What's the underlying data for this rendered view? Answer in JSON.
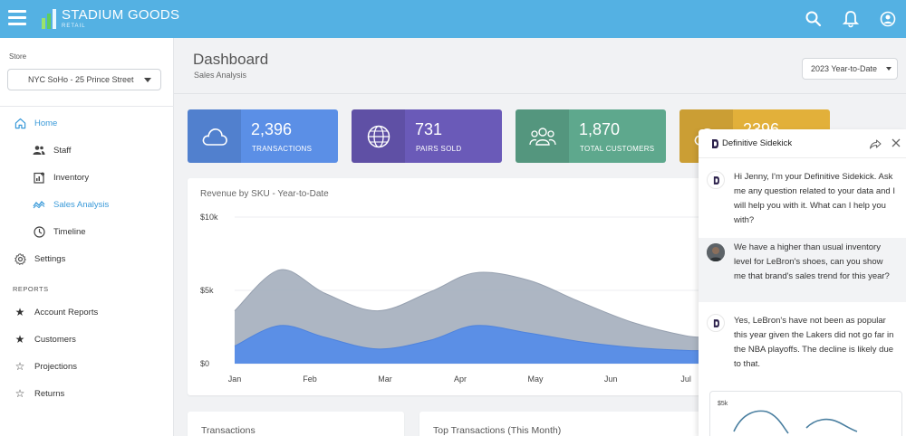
{
  "app": {
    "brand": "STADIUM GOODS",
    "brand_sub": "RETAIL"
  },
  "sidebar": {
    "store_label": "Store",
    "store_value": "NYC SoHo - 25 Prince Street",
    "items": [
      {
        "label": "Home",
        "icon": "home-icon"
      },
      {
        "label": "Staff",
        "icon": "staff-icon"
      },
      {
        "label": "Inventory",
        "icon": "inventory-icon"
      },
      {
        "label": "Sales Analysis",
        "icon": "trend-icon"
      },
      {
        "label": "Timeline",
        "icon": "clock-icon"
      },
      {
        "label": "Settings",
        "icon": "gear-icon"
      }
    ],
    "reports_label": "REPORTS",
    "reports": [
      {
        "label": "Account Reports",
        "icon": "star-filled-icon"
      },
      {
        "label": "Customers",
        "icon": "star-filled-icon"
      },
      {
        "label": "Projections",
        "icon": "star-outline-icon"
      },
      {
        "label": "Returns",
        "icon": "star-outline-icon"
      }
    ]
  },
  "header": {
    "title": "Dashboard",
    "subtitle": "Sales Analysis",
    "period": "2023 Year-to-Date"
  },
  "kpis": [
    {
      "value": "2,396",
      "label": "TRANSACTIONS",
      "color": "#5b8fe6",
      "icon": "cloud-icon"
    },
    {
      "value": "731",
      "label": "PAIRS SOLD",
      "color": "#6a5ab8",
      "icon": "globe-icon"
    },
    {
      "value": "1,870",
      "label": "TOTAL CUSTOMERS",
      "color": "#5ea88d",
      "icon": "users-icon"
    },
    {
      "value": "2396",
      "label": "",
      "color": "#e2b03a",
      "icon": "cloud-icon"
    }
  ],
  "chart_data": {
    "type": "area",
    "title": "Revenue by SKU - Year-to-Date",
    "categories": [
      "Jan",
      "Feb",
      "Mar",
      "Apr",
      "May",
      "Jun",
      "Jul"
    ],
    "y_ticks": [
      "$10k",
      "$5k",
      "$0"
    ],
    "ylim": [
      0,
      10000
    ],
    "series": [
      {
        "color": "#a9b2c0",
        "x": [
          0,
          0.6,
          1.2,
          1.9,
          2.6,
          3.2,
          3.9,
          4.6,
          5.3,
          6.0,
          6.3
        ],
        "values": [
          3600,
          6400,
          4800,
          3600,
          4900,
          6200,
          5700,
          4200,
          2800,
          1900,
          1800
        ]
      },
      {
        "color": "#5b8fe6",
        "x": [
          0,
          0.6,
          1.2,
          1.9,
          2.6,
          3.2,
          3.9,
          4.6,
          5.3,
          6.0,
          6.3
        ],
        "values": [
          1200,
          2600,
          1800,
          1000,
          1600,
          2600,
          2100,
          1500,
          1100,
          900,
          900
        ]
      }
    ]
  },
  "bottom_cards": {
    "transactions": "Transactions",
    "top_transactions": "Top Transactions (This Month)"
  },
  "sidekick": {
    "name": "Definitive Sidekick",
    "messages": [
      {
        "role": "bot",
        "text": "Hi Jenny, I'm your Definitive Sidekick. Ask me any question related to your data and I will help you with it. What can I help you with?"
      },
      {
        "role": "user",
        "text": "We have a higher than usual inventory level for LeBron's shoes, can you show me that brand's sales trend for this year?"
      },
      {
        "role": "bot",
        "text": "Yes, LeBron's have not been as popular this year given the Lakers did not go far in the NBA playoffs. The decline is likely due to that."
      }
    ],
    "mini_chart_y_label": "$5k",
    "mini_chart_color": "#4a7fa0"
  }
}
